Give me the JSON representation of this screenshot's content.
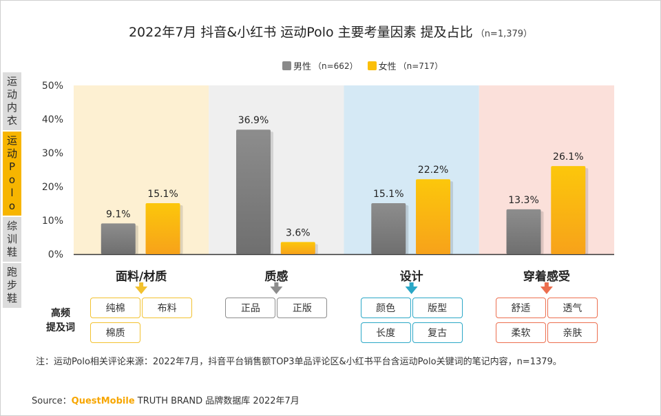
{
  "title": "2022年7月 抖音&小红书 运动Polo 主要考量因素 提及占比",
  "title_n": "（n=1,379）",
  "side_tabs": [
    {
      "label": "运动内衣",
      "active": false
    },
    {
      "label": "运动Polo",
      "active": true
    },
    {
      "label": "综训鞋",
      "active": false
    },
    {
      "label": "跑步鞋",
      "active": false
    }
  ],
  "colors": {
    "male": "#8a8a8a",
    "female": "#fbbf0a",
    "bg_fabric": "#fdf0d2",
    "bg_quality": "#efefef",
    "bg_design": "#d5e9f5",
    "bg_feel": "#fbe0da",
    "kw_fabric": "#f2c12e",
    "kw_quality": "#8c8c8c",
    "kw_design": "#2aa7c6",
    "kw_feel": "#ec6e4e"
  },
  "chart_data": {
    "type": "bar",
    "categories": [
      "面料/材质",
      "质感",
      "设计",
      "穿着感受"
    ],
    "series": [
      {
        "name": "男性",
        "n": "（n=662）",
        "values": [
          9.1,
          36.9,
          15.1,
          13.3
        ],
        "labels": [
          "9.1%",
          "36.9%",
          "15.1%",
          "13.3%"
        ]
      },
      {
        "name": "女性",
        "n": "（n=717）",
        "values": [
          15.1,
          3.6,
          22.2,
          26.1
        ],
        "labels": [
          "15.1%",
          "3.6%",
          "22.2%",
          "26.1%"
        ]
      }
    ],
    "ylim": [
      0,
      50
    ],
    "yticks": [
      "0%",
      "10%",
      "20%",
      "30%",
      "40%",
      "50%"
    ],
    "unit": "%"
  },
  "keywords_label": "高频\n提及词",
  "keywords": [
    [
      "纯棉",
      "布料",
      "棉质"
    ],
    [
      "正品",
      "正版"
    ],
    [
      "颜色",
      "版型",
      "长度",
      "复古"
    ],
    [
      "舒适",
      "透气",
      "柔软",
      "亲肤"
    ]
  ],
  "note": "注：运动Polo相关评论来源：2022年7月，抖音平台销售额TOP3单品评论区&小红书平台含运动Polo关键词的笔记内容，n=1379。",
  "source_prefix": "Source：",
  "source_brand": "QuestMobile",
  "source_suffix": " TRUTH BRAND 品牌数据库 2022年7月"
}
